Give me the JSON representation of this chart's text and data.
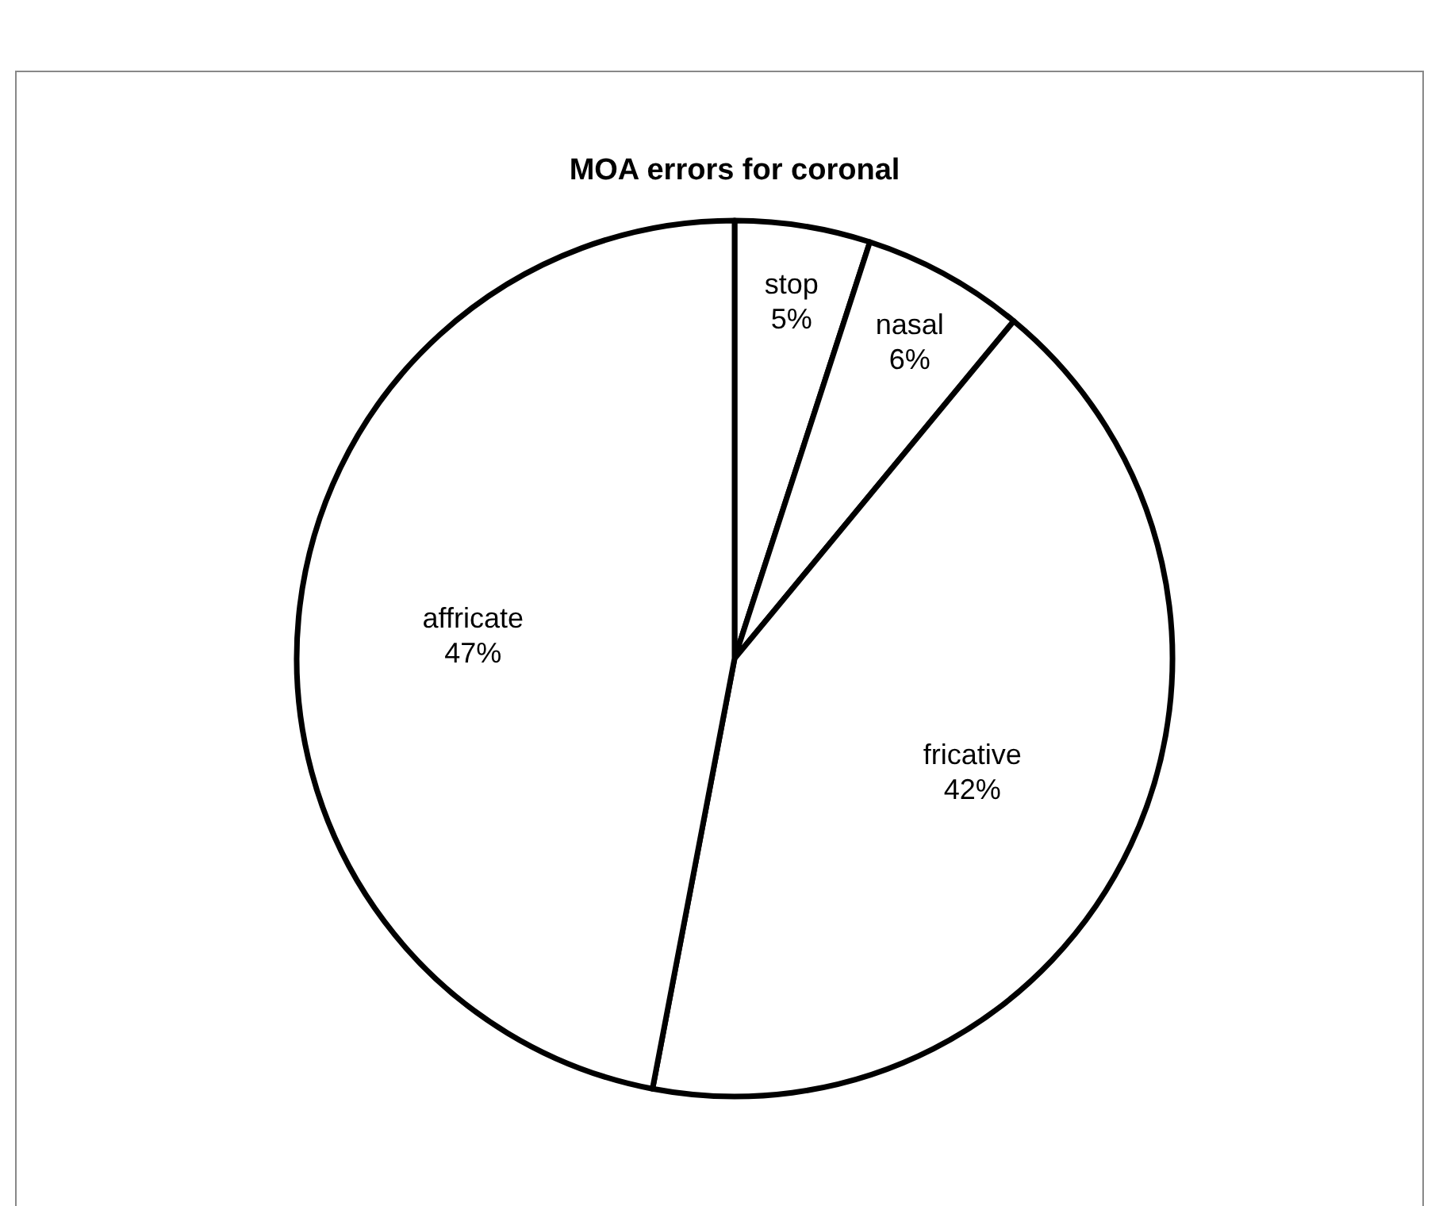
{
  "chart_data": {
    "type": "pie",
    "title": "MOA errors for coronal",
    "categories": [
      "stop",
      "nasal",
      "fricative",
      "affricate"
    ],
    "values": [
      5,
      6,
      42,
      47
    ],
    "value_labels": [
      "5%",
      "6%",
      "42%",
      "47%"
    ],
    "colors": [
      "#ffffff",
      "#ffffff",
      "#ffffff",
      "#ffffff"
    ]
  }
}
